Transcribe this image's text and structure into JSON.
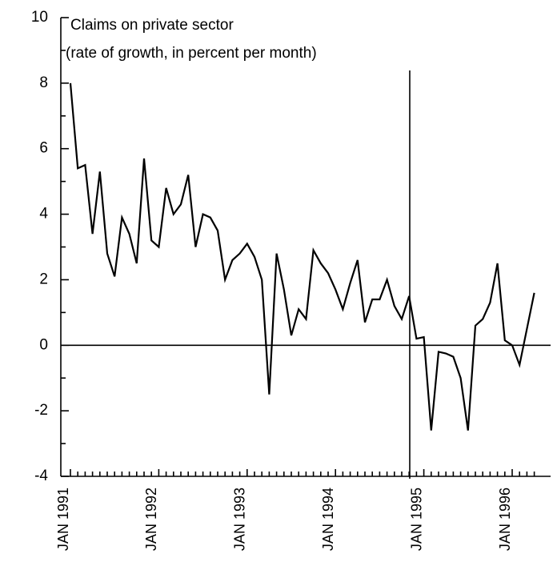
{
  "chart_data": {
    "type": "line",
    "title": "Claims on private sector",
    "subtitle": "(rate of growth, in percent per month)",
    "categories": [
      "JAN 1991",
      null,
      null,
      null,
      null,
      null,
      null,
      null,
      null,
      null,
      null,
      null,
      "JAN 1992",
      null,
      null,
      null,
      null,
      null,
      null,
      null,
      null,
      null,
      null,
      null,
      "JAN 1993",
      null,
      null,
      null,
      null,
      null,
      null,
      null,
      null,
      null,
      null,
      null,
      "JAN 1994",
      null,
      null,
      null,
      null,
      null,
      null,
      null,
      null,
      null,
      null,
      null,
      "JAN 1995",
      null,
      null,
      null,
      null,
      null,
      null,
      null,
      null,
      null,
      null,
      null,
      "JAN 1996",
      null,
      null,
      null
    ],
    "series": [
      {
        "name": "Claims on private sector",
        "color": "#000000",
        "values": [
          8.0,
          5.4,
          5.5,
          3.4,
          5.3,
          2.8,
          2.1,
          3.9,
          3.4,
          2.5,
          5.7,
          3.2,
          3.0,
          4.8,
          4.0,
          4.3,
          5.2,
          3.0,
          4.0,
          3.9,
          3.5,
          2.0,
          2.6,
          2.8,
          3.1,
          2.7,
          2.0,
          -1.5,
          2.8,
          1.7,
          0.3,
          1.1,
          0.8,
          2.9,
          2.5,
          2.2,
          1.7,
          1.1,
          1.9,
          2.6,
          0.7,
          1.4,
          1.4,
          2.0,
          1.2,
          0.8,
          1.5,
          0.2,
          0.25,
          -2.6,
          -0.2,
          -0.25,
          -0.35,
          -1.0,
          -2.6,
          0.6,
          0.8,
          1.3,
          2.5,
          0.15,
          0.0,
          -0.6,
          0.5,
          1.6
        ]
      }
    ],
    "ylim": [
      -4,
      10
    ],
    "yticks": [
      -4,
      -2,
      0,
      2,
      4,
      6,
      8,
      10
    ]
  }
}
